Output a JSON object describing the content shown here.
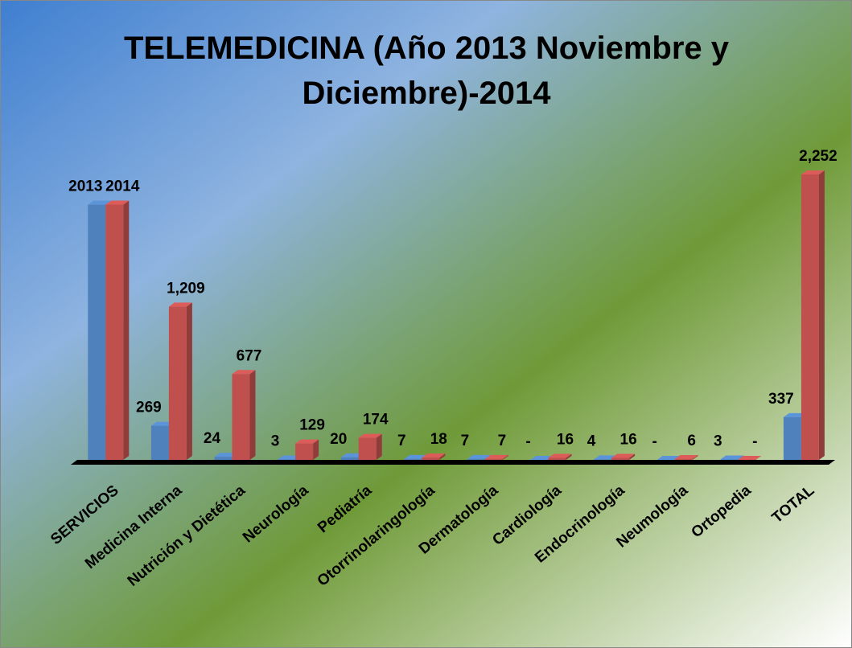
{
  "chart_data": {
    "type": "bar3d",
    "title": "TELEMEDICINA (Año 2013 Noviembre y Diciembre)-2014",
    "categories": [
      "SERVICIOS",
      "Medicina Interna",
      "Nutrición y Dietética",
      "Neurología",
      "Pediatría",
      "Otorrinolaringología",
      "Dermatología",
      "Cardiología",
      "Endocrinología",
      "Neumología",
      "Ortopedia",
      "TOTAL"
    ],
    "series": [
      {
        "color": "#4f81bd",
        "values": [
          2013,
          269,
          24,
          3,
          20,
          7,
          7,
          0,
          4,
          0,
          3,
          337
        ],
        "value_labels": [
          "2013",
          "269",
          "24",
          "3",
          "20",
          "7",
          "7",
          "-",
          "4",
          "-",
          "3",
          "337"
        ]
      },
      {
        "color": "#c0504d",
        "values": [
          2014,
          1209,
          677,
          129,
          174,
          18,
          7,
          16,
          16,
          6,
          0,
          2252
        ],
        "value_labels": [
          "2014",
          "1,209",
          "677",
          "129",
          "174",
          "18",
          "7",
          "16",
          "16",
          "6",
          "-",
          "2,252"
        ]
      }
    ]
  }
}
